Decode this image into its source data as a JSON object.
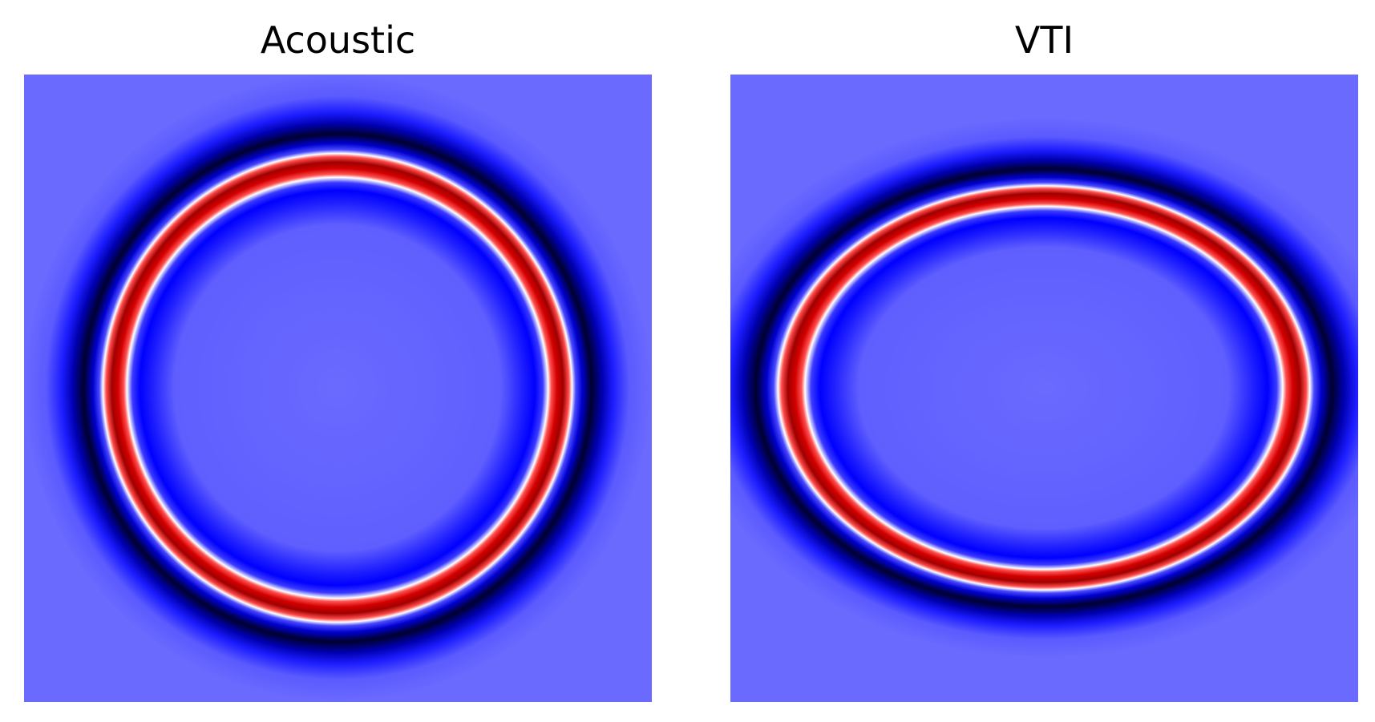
{
  "panels": [
    {
      "title": "Acoustic",
      "colors": {
        "background": "#6a6aff",
        "dark_ring": "#00002e",
        "blue_ring": "#0000ff",
        "white_ring": "#ffffff",
        "red_ring": "#b20000"
      }
    },
    {
      "title": "VTI",
      "colors": {
        "background": "#6a6aff",
        "dark_ring": "#00002e",
        "blue_ring": "#0000ff",
        "white_ring": "#ffffff",
        "red_ring": "#b20000"
      }
    }
  ]
}
